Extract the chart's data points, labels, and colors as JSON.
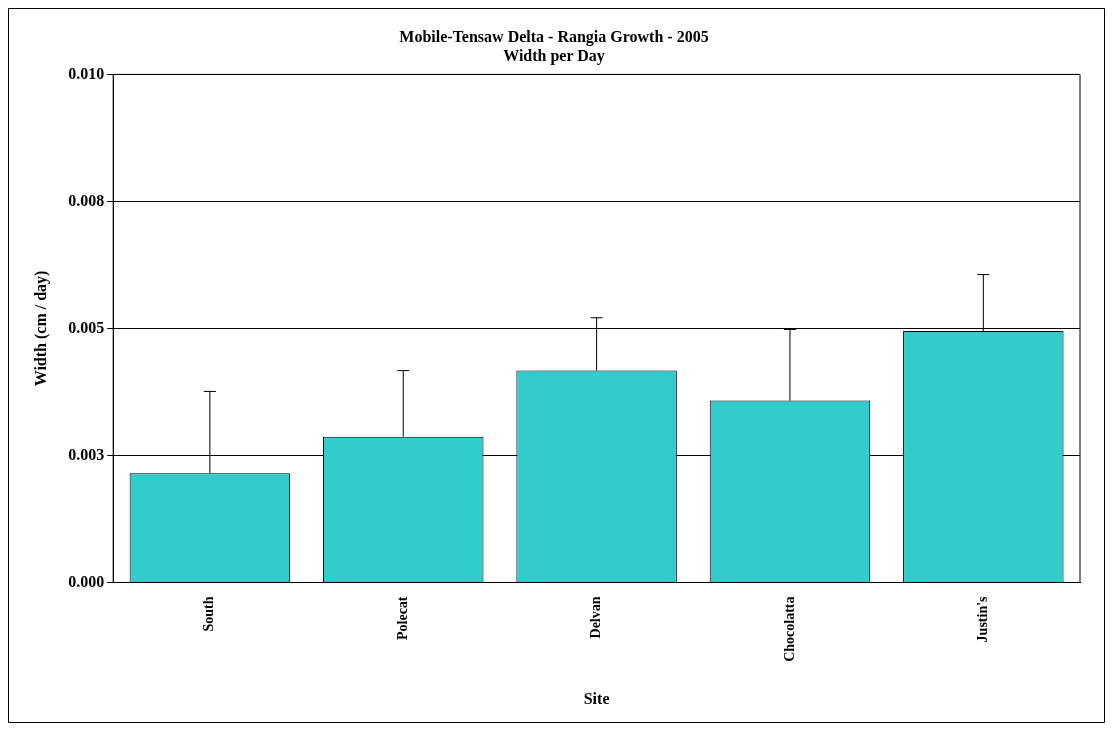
{
  "chart_data": {
    "type": "bar",
    "title": "Mobile-Tensaw Delta - Rangia Growth - 2005",
    "subtitle": "Width per Day",
    "xlabel": "Site",
    "ylabel": "Width (cm / day)",
    "categories": [
      "South",
      "Polecat",
      "Delvan",
      "Chocolatta",
      "Justin's"
    ],
    "values": [
      0.00215,
      0.00287,
      0.00417,
      0.00358,
      0.00495
    ],
    "errors": [
      [
        0.00215,
        0.00376
      ],
      [
        0.00287,
        0.00417
      ],
      [
        0.00417,
        0.00521
      ],
      [
        0.00358,
        0.00498
      ],
      [
        0.00495,
        0.00606
      ]
    ],
    "color": "#33cccc",
    "ylim": [
      0,
      0.01
    ],
    "yticks": [
      {
        "value": 0,
        "label": "0.000"
      },
      {
        "value": 0.0025,
        "label": "0.003"
      },
      {
        "value": 0.005,
        "label": "0.005"
      },
      {
        "value": 0.0075,
        "label": "0.008"
      },
      {
        "value": 0.01,
        "label": "0.010"
      }
    ],
    "grid": "y",
    "legend": false
  }
}
